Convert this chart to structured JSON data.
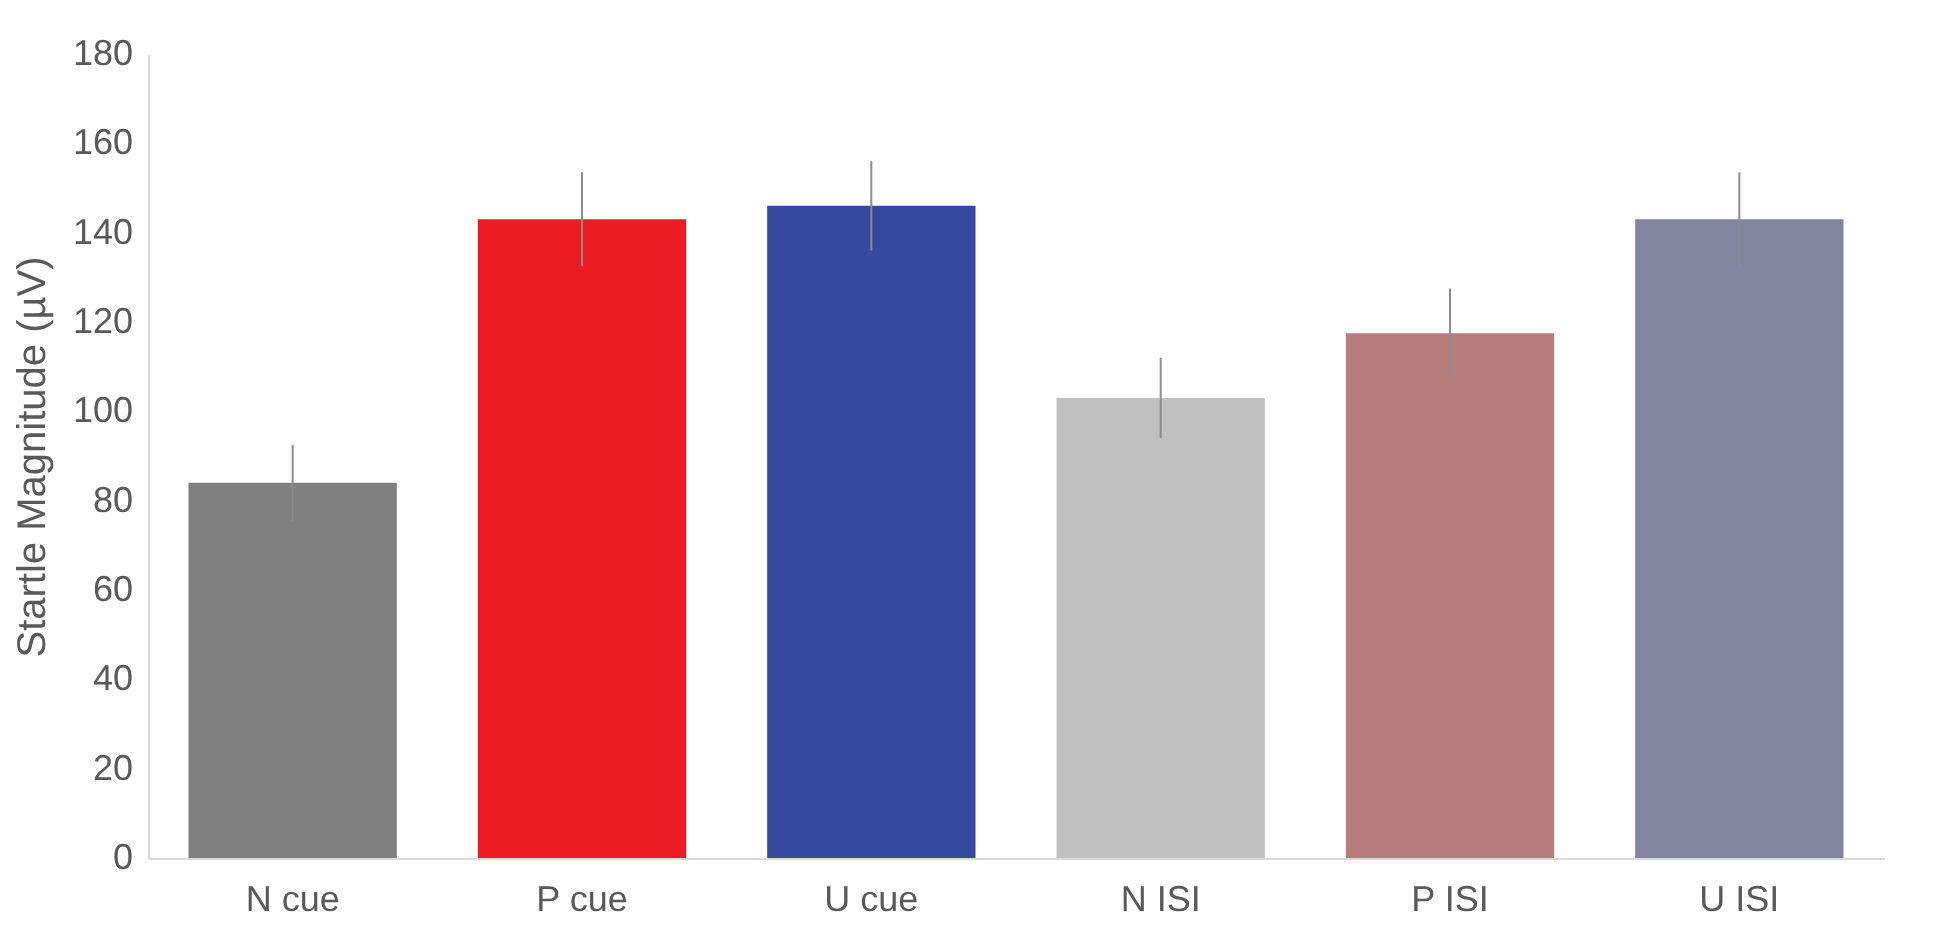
{
  "chart_data": {
    "type": "bar",
    "ylabel": "Startle Magnitude (µV)",
    "categories": [
      "N cue",
      "P cue",
      "U cue",
      "N ISI",
      "P ISI",
      "U ISI"
    ],
    "values": [
      84,
      143,
      146,
      103,
      117.5,
      143
    ],
    "errors": [
      8.5,
      10.5,
      10,
      9,
      10,
      10.5
    ],
    "colors": [
      "#808080",
      "#ed1c24",
      "#354a9e",
      "#c0c0c0",
      "#b77b7b",
      "#8284a0"
    ],
    "ylim": [
      0,
      180
    ],
    "yticks": [
      0,
      20,
      40,
      60,
      80,
      100,
      120,
      140,
      160,
      180
    ],
    "grid": false,
    "legend": false
  }
}
